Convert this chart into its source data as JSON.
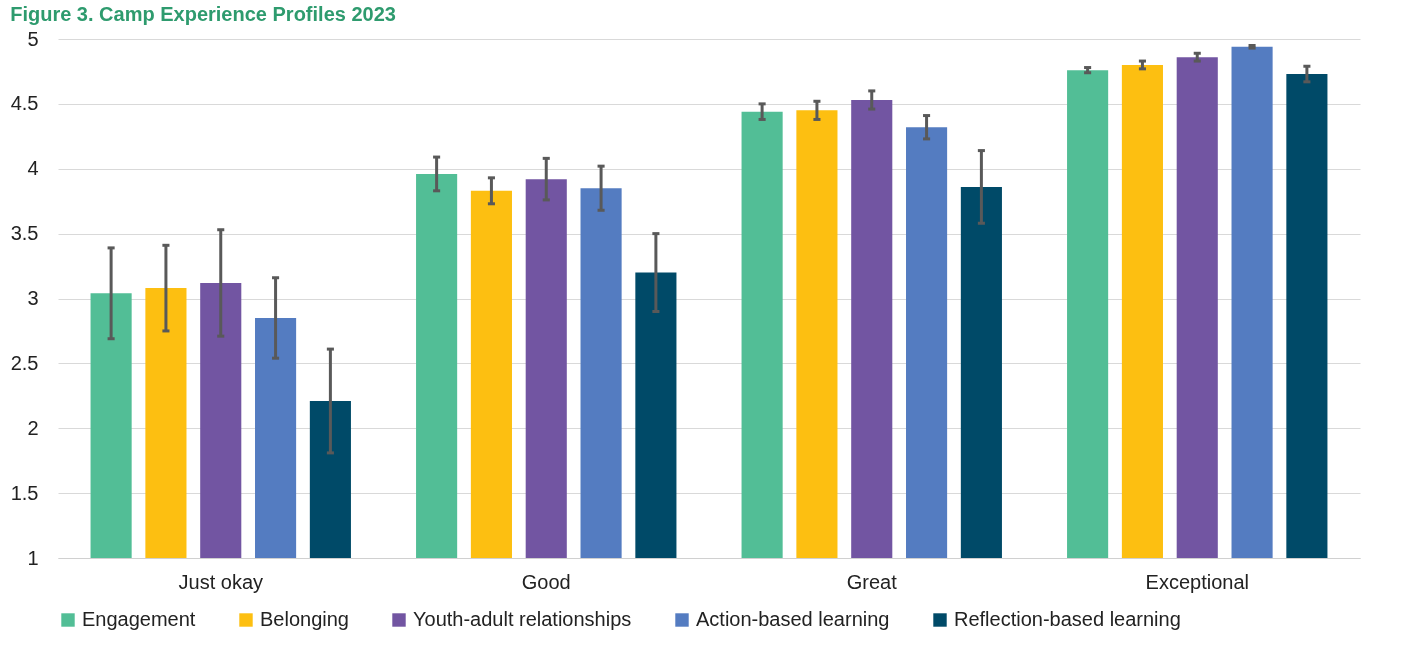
{
  "chart_data": {
    "type": "bar",
    "title": "Figure 3. Camp Experience Profiles 2023",
    "categories": [
      "Just okay",
      "Good",
      "Great",
      "Exceptional"
    ],
    "series": [
      {
        "name": "Engagement",
        "color": "#52be96",
        "values": [
          3.04,
          3.96,
          4.44,
          4.76
        ],
        "errors": [
          0.35,
          0.13,
          0.06,
          0.02
        ]
      },
      {
        "name": "Belonging",
        "color": "#fdbf11",
        "values": [
          3.08,
          3.83,
          4.45,
          4.8
        ],
        "errors": [
          0.33,
          0.1,
          0.07,
          0.03
        ]
      },
      {
        "name": "Youth-adult relationships",
        "color": "#7255a2",
        "values": [
          3.12,
          3.92,
          4.53,
          4.86
        ],
        "errors": [
          0.41,
          0.16,
          0.07,
          0.03
        ]
      },
      {
        "name": "Action-based learning",
        "color": "#547cc1",
        "values": [
          2.85,
          3.85,
          4.32,
          4.94
        ],
        "errors": [
          0.31,
          0.17,
          0.09,
          0.01
        ]
      },
      {
        "name": "Reflection-based learning",
        "color": "#004a68",
        "values": [
          2.21,
          3.2,
          3.86,
          4.73
        ],
        "errors": [
          0.4,
          0.3,
          0.28,
          0.06
        ]
      }
    ],
    "ylim": [
      1,
      5
    ],
    "yticks": [
      1,
      1.5,
      2,
      2.5,
      3,
      3.5,
      4,
      4.5,
      5
    ],
    "grid": "y",
    "legend": "bottom"
  }
}
